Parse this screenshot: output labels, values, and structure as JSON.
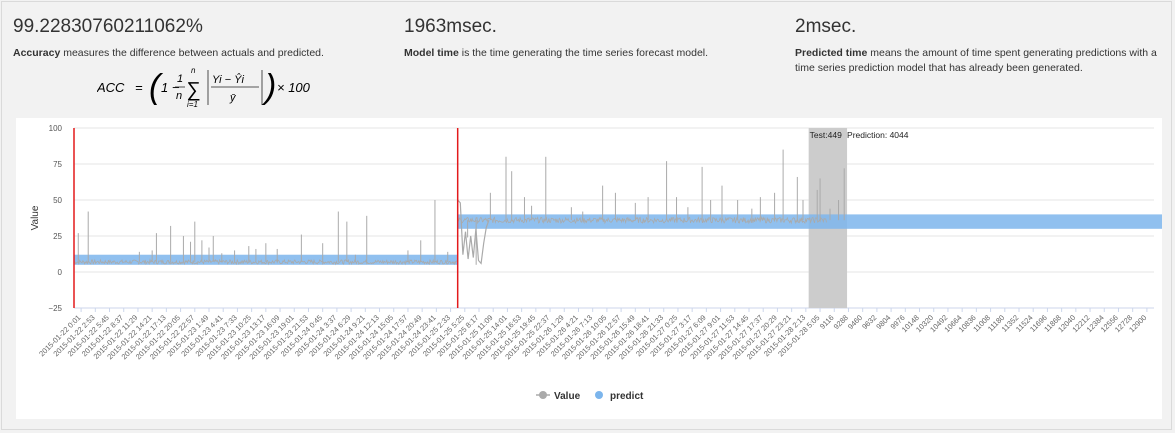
{
  "metrics": {
    "accuracy": {
      "value": "99.22830760211062%",
      "term": "Accuracy",
      "description": " measures the difference between actuals and predicted."
    },
    "model_time": {
      "value": "1963msec.",
      "term": "Model time",
      "description": " is the time generating the time series forecast model."
    },
    "predicted_time": {
      "value": "2msec.",
      "term": "Predicted time",
      "description": " means the amount of time spent generating predictions with a time series prediction model that has already been generated."
    }
  },
  "formula": {
    "lhs": "ACC",
    "multiplier": "× 100",
    "sum_upper": "n",
    "sum_lower": "i=1",
    "one": "1",
    "num": "1",
    "den": "n",
    "frac_num": "Yi − Ŷi",
    "frac_den": "ȳ"
  },
  "chart_data": {
    "type": "line",
    "ylabel": "Value",
    "ylim": [
      -25,
      100
    ],
    "yticks": [
      "100",
      "75",
      "50",
      "25",
      "0",
      "−25"
    ],
    "grid": true,
    "legend_position": "bottom",
    "legend": [
      {
        "name": "Value",
        "color": "#aaaaaa",
        "marker": "circle"
      },
      {
        "name": "predict",
        "color": "#7cb5ec",
        "marker": "circle"
      }
    ],
    "annotation": {
      "test_label": "Test:449",
      "prediction_label": "Prediction: 4044"
    },
    "x_categories": [
      "2015-01-22 0:01",
      "2015-01-22 2:53",
      "2015-01-22 5:45",
      "2015-01-22 8:37",
      "2015-01-22 11:29",
      "2015-01-22 14:21",
      "2015-01-22 17:13",
      "2015-01-22 20:05",
      "2015-01-22 22:57",
      "2015-01-23 1:49",
      "2015-01-23 4:41",
      "2015-01-23 7:33",
      "2015-01-23 10:25",
      "2015-01-23 13:17",
      "2015-01-23 16:09",
      "2015-01-23 19:01",
      "2015-01-23 21:53",
      "2015-01-24 0:45",
      "2015-01-24 3:37",
      "2015-01-24 6:29",
      "2015-01-24 9:21",
      "2015-01-24 12:13",
      "2015-01-24 15:05",
      "2015-01-24 17:57",
      "2015-01-24 20:49",
      "2015-01-24 23:41",
      "2015-01-25 2:33",
      "2015-01-25 5:25",
      "2015-01-25 8:17",
      "2015-01-25 11:09",
      "2015-01-25 14:01",
      "2015-01-25 16:53",
      "2015-01-25 19:45",
      "2015-01-25 22:37",
      "2015-01-26 1:29",
      "2015-01-26 4:21",
      "2015-01-26 7:13",
      "2015-01-26 10:05",
      "2015-01-26 12:57",
      "2015-01-26 15:49",
      "2015-01-26 18:41",
      "2015-01-26 21:33",
      "2015-01-27 0:25",
      "2015-01-27 3:17",
      "2015-01-27 6:09",
      "2015-01-27 9:01",
      "2015-01-27 11:53",
      "2015-01-27 14:45",
      "2015-01-27 17:37",
      "2015-01-27 20:29",
      "2015-01-27 23:21",
      "2015-01-28 2:13",
      "2015-01-28 5:05",
      "9116",
      "9288",
      "9460",
      "9632",
      "9804",
      "9976",
      "10148",
      "10320",
      "10492",
      "10664",
      "10836",
      "11008",
      "11180",
      "11352",
      "11524",
      "11696",
      "11868",
      "12040",
      "12212",
      "12384",
      "12556",
      "12728",
      "12900"
    ],
    "series": [
      {
        "name": "Value",
        "color": "#aaaaaa",
        "segments": [
          {
            "x_from": 0,
            "x_to": 27,
            "baseline": 7,
            "noise": 3
          },
          {
            "x_from": 27,
            "x_to": 53,
            "baseline": 36,
            "noise": 4
          }
        ],
        "spikes": [
          {
            "x": 0.3,
            "y": 27
          },
          {
            "x": 1.0,
            "y": 42
          },
          {
            "x": 4.6,
            "y": 14
          },
          {
            "x": 5.5,
            "y": 15
          },
          {
            "x": 5.8,
            "y": 27
          },
          {
            "x": 6.8,
            "y": 32
          },
          {
            "x": 7.7,
            "y": 25
          },
          {
            "x": 8.2,
            "y": 21
          },
          {
            "x": 8.5,
            "y": 35
          },
          {
            "x": 9.0,
            "y": 22
          },
          {
            "x": 9.5,
            "y": 17
          },
          {
            "x": 9.8,
            "y": 25
          },
          {
            "x": 10.4,
            "y": 13
          },
          {
            "x": 11.3,
            "y": 15
          },
          {
            "x": 12.3,
            "y": 18
          },
          {
            "x": 12.8,
            "y": 16
          },
          {
            "x": 13.5,
            "y": 20
          },
          {
            "x": 14.3,
            "y": 16
          },
          {
            "x": 16.0,
            "y": 26
          },
          {
            "x": 17.5,
            "y": 20
          },
          {
            "x": 18.6,
            "y": 42
          },
          {
            "x": 19.2,
            "y": 35
          },
          {
            "x": 19.8,
            "y": 12
          },
          {
            "x": 20.6,
            "y": 39
          },
          {
            "x": 23.5,
            "y": 15
          },
          {
            "x": 24.4,
            "y": 22
          },
          {
            "x": 25.4,
            "y": 50
          },
          {
            "x": 26.3,
            "y": 14
          },
          {
            "x": 27.7,
            "y": 24
          },
          {
            "x": 28.3,
            "y": 5
          },
          {
            "x": 29.3,
            "y": 55
          },
          {
            "x": 30.4,
            "y": 80
          },
          {
            "x": 30.8,
            "y": 70
          },
          {
            "x": 31.7,
            "y": 52
          },
          {
            "x": 32.2,
            "y": 46
          },
          {
            "x": 33.2,
            "y": 80
          },
          {
            "x": 35.0,
            "y": 45
          },
          {
            "x": 35.8,
            "y": 42
          },
          {
            "x": 37.2,
            "y": 60
          },
          {
            "x": 38.1,
            "y": 55
          },
          {
            "x": 39.5,
            "y": 48
          },
          {
            "x": 40.4,
            "y": 52
          },
          {
            "x": 41.7,
            "y": 77
          },
          {
            "x": 42.4,
            "y": 52
          },
          {
            "x": 43.2,
            "y": 45
          },
          {
            "x": 44.2,
            "y": 73
          },
          {
            "x": 44.8,
            "y": 50
          },
          {
            "x": 45.6,
            "y": 60
          },
          {
            "x": 46.7,
            "y": 50
          },
          {
            "x": 47.7,
            "y": 44
          },
          {
            "x": 48.3,
            "y": 52
          },
          {
            "x": 49.3,
            "y": 55
          },
          {
            "x": 49.9,
            "y": 85
          },
          {
            "x": 50.9,
            "y": 66
          },
          {
            "x": 51.3,
            "y": 50
          },
          {
            "x": 52.5,
            "y": 65
          },
          {
            "x": 53.2,
            "y": 44
          },
          {
            "x": 54.2,
            "y": 72
          },
          {
            "x": 52.3,
            "y": 57
          },
          {
            "x": 53.8,
            "y": 50
          }
        ],
        "dip": {
          "x_from": 27.0,
          "x_to": 29.2,
          "values": [
            50,
            48,
            12,
            28,
            9,
            25,
            10,
            30,
            8,
            6,
            20,
            31,
            36
          ]
        }
      },
      {
        "name": "predict",
        "color": "#7cb5ec",
        "bands": [
          {
            "x_from": 0,
            "x_to": 27,
            "low": 5,
            "high": 12
          },
          {
            "x_from": 27,
            "x_to": 79,
            "low": 30,
            "high": 40
          }
        ]
      }
    ],
    "markers": [
      {
        "type": "vertical_line",
        "x": 0,
        "color": "#e31a1c"
      },
      {
        "type": "vertical_line",
        "x": 27,
        "color": "#e31a1c"
      },
      {
        "type": "band",
        "x_from": 51.7,
        "x_to": 54.4,
        "color": "#cccccc"
      }
    ]
  }
}
